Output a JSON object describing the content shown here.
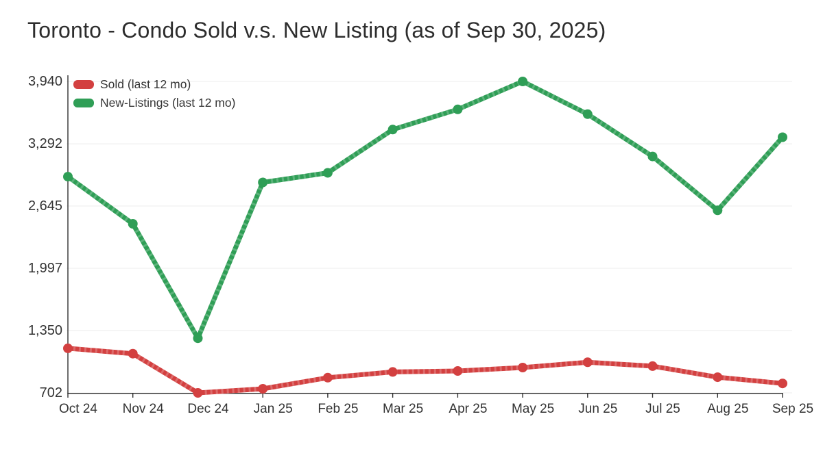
{
  "title": "Toronto - Condo Sold v.s. New Listing (as of Sep 30, 2025)",
  "legend": {
    "items": [
      {
        "label": "Sold (last 12 mo)",
        "color": "#d34040"
      },
      {
        "label": "New-Listings (last 12 mo)",
        "color": "#2f9e56"
      }
    ]
  },
  "chart_data": {
    "type": "line",
    "title": "Toronto - Condo Sold v.s. New Listing (as of Sep 30, 2025)",
    "categories": [
      "Oct 24",
      "Nov 24",
      "Dec 24",
      "Jan 25",
      "Feb 25",
      "Mar 25",
      "Apr 25",
      "May 25",
      "Jun 25",
      "Jul 25",
      "Aug 25",
      "Sep 25"
    ],
    "series": [
      {
        "id": "sold",
        "name": "Sold (last 12 mo)",
        "color": "#d34040",
        "values": [
          1165,
          1110,
          702,
          745,
          860,
          920,
          930,
          965,
          1020,
          980,
          865,
          800
        ]
      },
      {
        "id": "new-listings",
        "name": "New-Listings (last 12 mo)",
        "color": "#2f9e56",
        "values": [
          2950,
          2460,
          1270,
          2890,
          2990,
          3440,
          3650,
          3940,
          3600,
          3160,
          2600,
          3360
        ]
      }
    ],
    "yticks": {
      "values": [
        702,
        1350,
        1997,
        2645,
        3292,
        3940
      ],
      "labels": [
        "702",
        "1,350",
        "1,997",
        "2,645",
        "3,292",
        "3,940"
      ]
    },
    "ylim": [
      702,
      3940
    ],
    "xlabel": "",
    "ylabel": "",
    "grid": true,
    "legend_position": "top-left",
    "axis_color": "#2f2f2f",
    "grid_color": "#ececec",
    "tick_label_color": "#333333",
    "background": "#ffffff"
  }
}
